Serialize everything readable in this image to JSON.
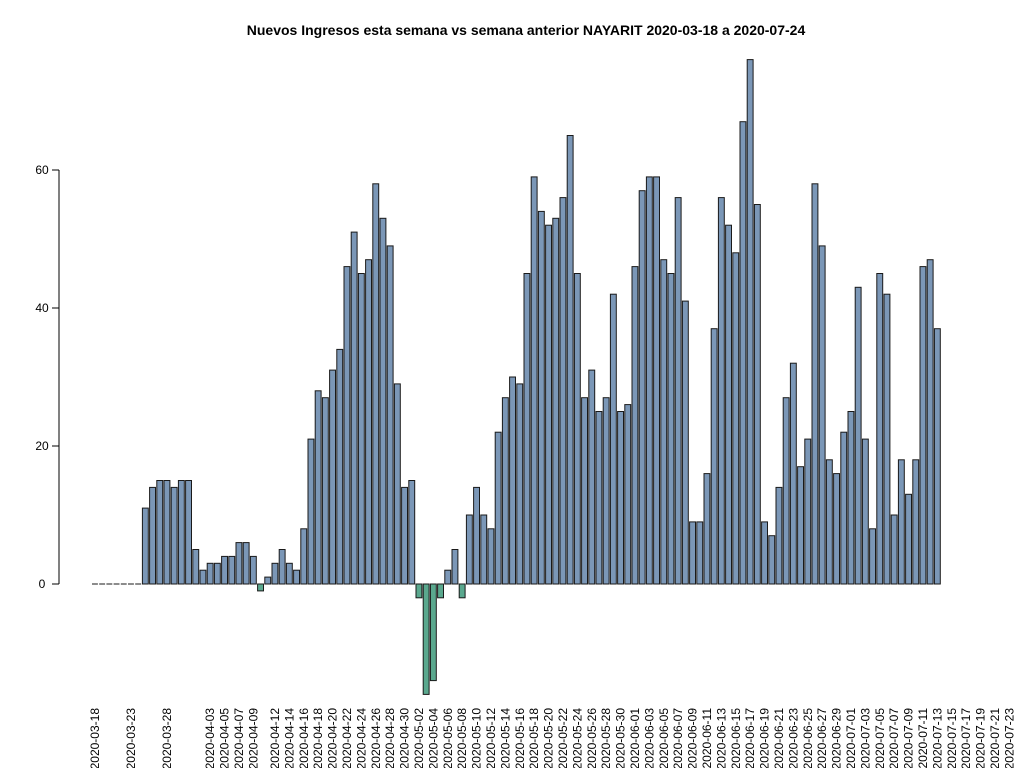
{
  "chart_data": {
    "type": "bar",
    "title": "Nuevos Ingresos esta semana vs semana anterior NAYARIT 2020-03-18 a 2020-07-24",
    "xlabel": "",
    "ylabel": "",
    "ylim": [
      -16,
      76
    ],
    "y_ticks": [
      0,
      20,
      40,
      60
    ],
    "x_tick_labels": [
      "2020-03-18",
      "2020-03-23",
      "2020-03-28",
      "2020-04-03",
      "2020-04-05",
      "2020-04-07",
      "2020-04-09",
      "2020-04-12",
      "2020-04-14",
      "2020-04-16",
      "2020-04-18",
      "2020-04-20",
      "2020-04-22",
      "2020-04-24",
      "2020-04-26",
      "2020-04-28",
      "2020-04-30",
      "2020-05-02",
      "2020-05-04",
      "2020-05-06",
      "2020-05-08",
      "2020-05-10",
      "2020-05-12",
      "2020-05-14",
      "2020-05-16",
      "2020-05-18",
      "2020-05-20",
      "2020-05-22",
      "2020-05-24",
      "2020-05-26",
      "2020-05-28",
      "2020-05-30",
      "2020-06-01",
      "2020-06-03",
      "2020-06-05",
      "2020-06-07",
      "2020-06-09",
      "2020-06-11",
      "2020-06-13",
      "2020-06-15",
      "2020-06-17",
      "2020-06-19",
      "2020-06-21",
      "2020-06-23",
      "2020-06-25",
      "2020-06-27",
      "2020-06-29",
      "2020-07-01",
      "2020-07-03",
      "2020-07-05",
      "2020-07-07",
      "2020-07-09",
      "2020-07-11",
      "2020-07-13",
      "2020-07-15",
      "2020-07-17",
      "2020-07-19",
      "2020-07-21",
      "2020-07-23"
    ],
    "values": [
      0,
      0,
      0,
      0,
      0,
      0,
      0,
      11,
      14,
      15,
      15,
      14,
      15,
      15,
      5,
      2,
      3,
      3,
      4,
      4,
      6,
      6,
      4,
      -1,
      1,
      3,
      5,
      3,
      2,
      8,
      21,
      28,
      27,
      31,
      34,
      46,
      51,
      45,
      47,
      58,
      53,
      49,
      29,
      14,
      15,
      -2,
      -16,
      -14,
      -2,
      2,
      5,
      -2,
      10,
      14,
      10,
      8,
      22,
      27,
      30,
      29,
      45,
      59,
      54,
      52,
      53,
      56,
      65,
      45,
      27,
      31,
      25,
      27,
      42,
      25,
      26,
      46,
      57,
      59,
      59,
      47,
      45,
      56,
      41,
      9,
      9,
      16,
      37,
      56,
      52,
      48,
      67,
      76,
      55,
      9,
      7,
      14,
      27,
      32,
      17,
      21,
      58,
      49,
      18,
      16,
      22,
      25,
      43,
      21,
      8,
      45,
      42,
      10,
      18,
      13,
      18,
      46,
      47,
      37
    ],
    "colors": {
      "positive": "#7b97b7",
      "negative": "#5aa88e",
      "outline": "#1a1a1a"
    },
    "grid": false,
    "legend": "none"
  }
}
